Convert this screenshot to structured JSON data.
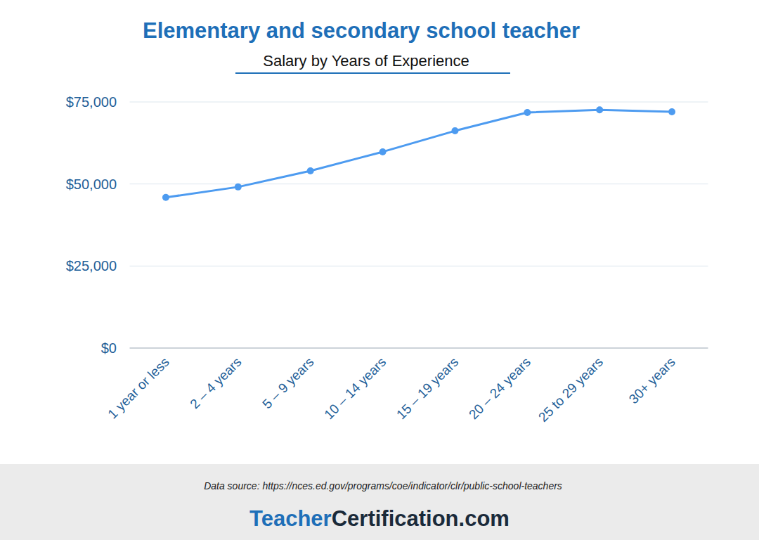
{
  "chart_data": {
    "type": "line",
    "title": "Elementary and secondary school teacher",
    "subtitle": "Salary by Years of Experience",
    "categories": [
      "1 year or less",
      "2 – 4 years",
      "5 – 9 years",
      "10 – 14 years",
      "15 – 19 years",
      "20 – 24 years",
      "25 to 29 years",
      "30+ years"
    ],
    "values": [
      45900,
      49100,
      54000,
      59800,
      66200,
      71800,
      72600,
      72000
    ],
    "color": "#4d9bf0",
    "marker": "circle",
    "ylim": [
      0,
      75000
    ],
    "yticks": [
      {
        "value": 0,
        "label": "$0"
      },
      {
        "value": 25000,
        "label": "$25,000"
      },
      {
        "value": 50000,
        "label": "$50,000"
      },
      {
        "value": 75000,
        "label": "$75,000"
      }
    ],
    "grid": true
  },
  "footer": {
    "source": "Data source: https://nces.ed.gov/programs/coe/indicator/clr/public-school-teachers",
    "brand": [
      "Teacher",
      "Certification.com"
    ]
  }
}
